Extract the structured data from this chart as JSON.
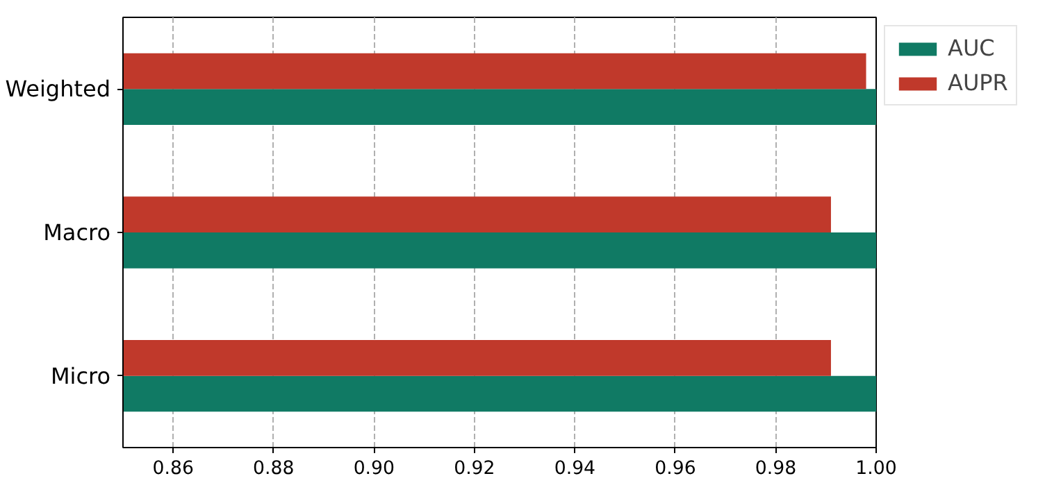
{
  "chart_data": {
    "type": "bar",
    "orientation": "horizontal",
    "categories": [
      "Weighted",
      "Macro",
      "Micro"
    ],
    "series": [
      {
        "name": "AUC",
        "color": "#107a64",
        "values": [
          1.0,
          1.0,
          1.0
        ]
      },
      {
        "name": "AUPR",
        "color": "#c0392b",
        "values": [
          0.998,
          0.991,
          0.991
        ]
      }
    ],
    "xlim": [
      0.85,
      1.0
    ],
    "xticks": [
      {
        "value": 0.86,
        "label": "0.86"
      },
      {
        "value": 0.88,
        "label": "0.88"
      },
      {
        "value": 0.9,
        "label": "0.90"
      },
      {
        "value": 0.92,
        "label": "0.92"
      },
      {
        "value": 0.94,
        "label": "0.94"
      },
      {
        "value": 0.96,
        "label": "0.96"
      },
      {
        "value": 0.98,
        "label": "0.98"
      },
      {
        "value": 1.0,
        "label": "1.00"
      }
    ],
    "grid": "x",
    "legend": "top right"
  }
}
